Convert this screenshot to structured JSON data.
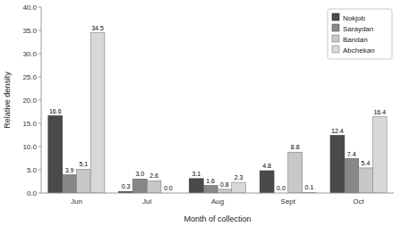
{
  "chart_data": {
    "type": "bar",
    "xlabel": "Month of collection",
    "ylabel": "Relative density",
    "categories": [
      "Jun",
      "Jul",
      "Aug",
      "Sept",
      "Oct"
    ],
    "series": [
      {
        "name": "Nokjob",
        "color": "#4a4a4a",
        "values": [
          16.6,
          0.3,
          3.1,
          4.8,
          12.4
        ],
        "value_labels": [
          "16.6",
          "0.3",
          "3.1",
          "4.8",
          "12.4"
        ]
      },
      {
        "name": "Saraydan",
        "color": "#888888",
        "values": [
          3.9,
          3.0,
          1.6,
          0.0,
          7.4
        ],
        "value_labels": [
          "3.9",
          "3.0",
          "1.6",
          "0.0",
          "7.4"
        ]
      },
      {
        "name": "Bandan",
        "color": "#c8c8c8",
        "values": [
          5.1,
          2.6,
          0.8,
          8.8,
          5.4
        ],
        "value_labels": [
          "5.1",
          "2.6",
          "0.8",
          "8.8",
          "5.4"
        ]
      },
      {
        "name": "Abchekan",
        "color": "#d8d8d8",
        "values": [
          34.5,
          0.0,
          2.3,
          0.1,
          16.4
        ],
        "value_labels": [
          "34.5",
          "0.0",
          "2.3",
          "0.1",
          "16.4"
        ]
      }
    ],
    "ylim": [
      0,
      40.0
    ],
    "yticks": [
      {
        "value": 0.0,
        "label": "0.0"
      },
      {
        "value": 5.0,
        "label": "5.0"
      },
      {
        "value": 10.0,
        "label": "10.0"
      },
      {
        "value": 15.0,
        "label": "15.0"
      },
      {
        "value": 20.0,
        "label": "20.0"
      },
      {
        "value": 25.0,
        "label": "25.0"
      },
      {
        "value": 30.0,
        "label": "30.0"
      },
      {
        "value": 35.0,
        "label": "35.0"
      },
      {
        "value": 40.0,
        "label": "40.0"
      }
    ],
    "data_labels": true,
    "legend": "upper right"
  }
}
